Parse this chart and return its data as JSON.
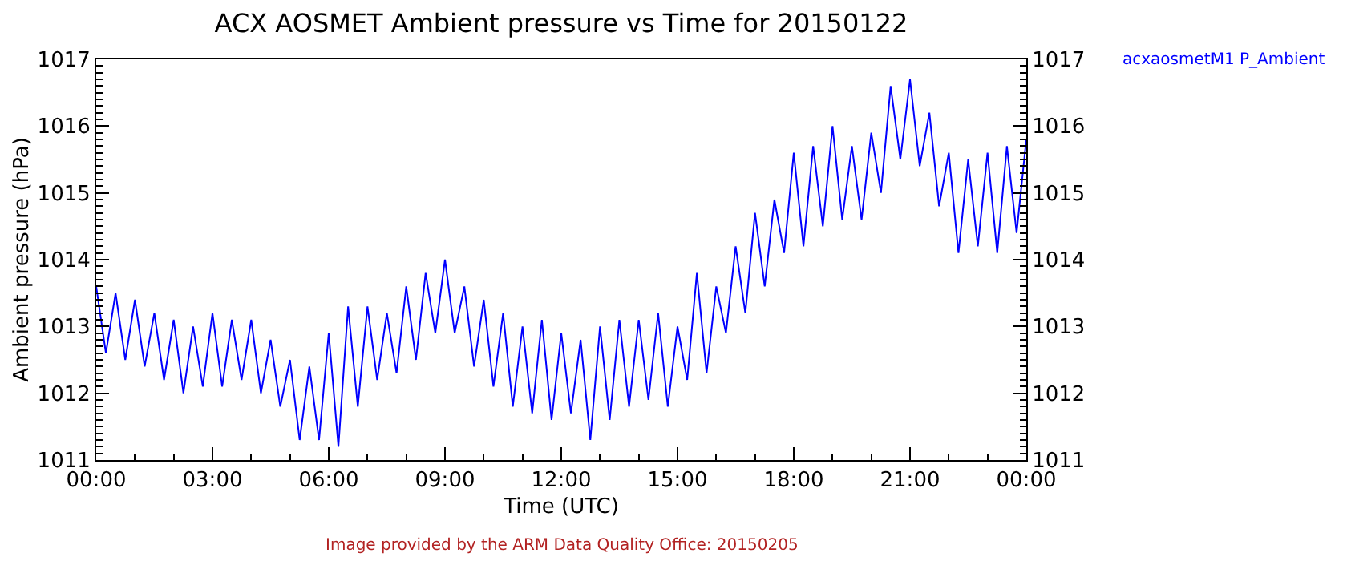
{
  "chart_data": {
    "type": "line",
    "title": "ACX AOSMET Ambient pressure vs Time for 20150122",
    "xlabel": "Time (UTC)",
    "ylabel": "Ambient pressure (hPa)",
    "x": [
      0,
      0.25,
      0.5,
      0.75,
      1,
      1.25,
      1.5,
      1.75,
      2,
      2.25,
      2.5,
      2.75,
      3,
      3.25,
      3.5,
      3.75,
      4,
      4.25,
      4.5,
      4.75,
      5,
      5.25,
      5.5,
      5.75,
      6,
      6.25,
      6.5,
      6.75,
      7,
      7.25,
      7.5,
      7.75,
      8,
      8.25,
      8.5,
      8.75,
      9,
      9.25,
      9.5,
      9.75,
      10,
      10.25,
      10.5,
      10.75,
      11,
      11.25,
      11.5,
      11.75,
      12,
      12.25,
      12.5,
      12.75,
      13,
      13.25,
      13.5,
      13.75,
      14,
      14.25,
      14.5,
      14.75,
      15,
      15.25,
      15.5,
      15.75,
      16,
      16.25,
      16.5,
      16.75,
      17,
      17.25,
      17.5,
      17.75,
      18,
      18.25,
      18.5,
      18.75,
      19,
      19.25,
      19.5,
      19.75,
      20,
      20.25,
      20.5,
      20.75,
      21,
      21.25,
      21.5,
      21.75,
      22,
      22.25,
      22.5,
      22.75,
      23,
      23.25,
      23.5,
      23.75,
      24
    ],
    "series": [
      {
        "name": "acxaosmetM1 P_Ambient",
        "color": "#0000ff",
        "values": [
          1013.6,
          1012.6,
          1013.5,
          1012.5,
          1013.4,
          1012.4,
          1013.2,
          1012.2,
          1013.1,
          1012.0,
          1013.0,
          1012.1,
          1013.2,
          1012.1,
          1013.1,
          1012.2,
          1013.1,
          1012.0,
          1012.8,
          1011.8,
          1012.5,
          1011.3,
          1012.4,
          1011.3,
          1012.9,
          1011.2,
          1013.3,
          1011.8,
          1013.3,
          1012.2,
          1013.2,
          1012.3,
          1013.6,
          1012.5,
          1013.8,
          1012.9,
          1014.0,
          1012.9,
          1013.6,
          1012.4,
          1013.4,
          1012.1,
          1013.2,
          1011.8,
          1013.0,
          1011.7,
          1013.1,
          1011.6,
          1012.9,
          1011.7,
          1012.8,
          1011.3,
          1013.0,
          1011.6,
          1013.1,
          1011.8,
          1013.1,
          1011.9,
          1013.2,
          1011.8,
          1013.0,
          1012.2,
          1013.8,
          1012.3,
          1013.6,
          1012.9,
          1014.2,
          1013.2,
          1014.7,
          1013.6,
          1014.9,
          1014.1,
          1015.6,
          1014.2,
          1015.7,
          1014.5,
          1016.0,
          1014.6,
          1015.7,
          1014.6,
          1015.9,
          1015.0,
          1016.6,
          1015.5,
          1016.7,
          1015.4,
          1016.2,
          1014.8,
          1015.6,
          1014.1,
          1015.5,
          1014.2,
          1015.6,
          1014.1,
          1015.7,
          1014.4,
          1015.8
        ]
      }
    ],
    "xlim": [
      0,
      24
    ],
    "xticks": [
      {
        "value": 0,
        "label": "00:00"
      },
      {
        "value": 3,
        "label": "03:00"
      },
      {
        "value": 6,
        "label": "06:00"
      },
      {
        "value": 9,
        "label": "09:00"
      },
      {
        "value": 12,
        "label": "12:00"
      },
      {
        "value": 15,
        "label": "15:00"
      },
      {
        "value": 18,
        "label": "18:00"
      },
      {
        "value": 21,
        "label": "21:00"
      },
      {
        "value": 24,
        "label": "00:00"
      }
    ],
    "ylim": [
      1011,
      1017
    ],
    "yticks": [
      1011,
      1012,
      1013,
      1014,
      1015,
      1016,
      1017
    ],
    "y2lim": [
      1011,
      1017
    ],
    "y2ticks": [
      1011,
      1012,
      1013,
      1014,
      1015,
      1016,
      1017
    ],
    "annotations": [
      "Image provided by the ARM Data Quality Office: 20150205"
    ],
    "grid": false,
    "legend": "top right",
    "marker": "none",
    "line_style": "solid"
  }
}
